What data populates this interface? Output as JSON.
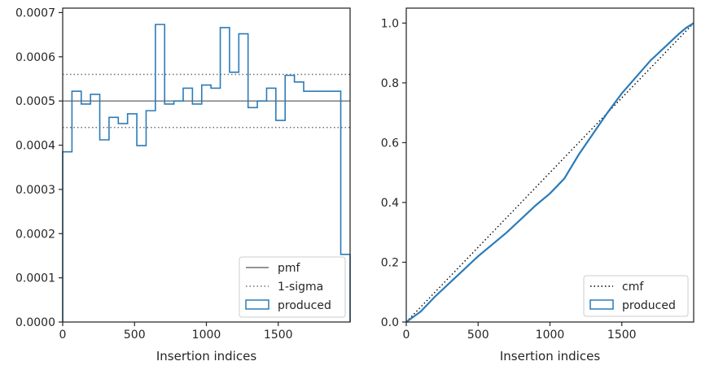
{
  "chart_data": [
    {
      "type": "histogram",
      "xlabel": "Insertion indices",
      "ylabel": "",
      "xlim": [
        0,
        2000
      ],
      "ylim": [
        0,
        0.00071
      ],
      "xticks": [
        "0",
        "500",
        "1000",
        "1500"
      ],
      "yticks": [
        "0.0000",
        "0.0001",
        "0.0002",
        "0.0003",
        "0.0004",
        "0.0005",
        "0.0006",
        "0.0007"
      ],
      "ytick_values": [
        0,
        0.0001,
        0.0002,
        0.0003,
        0.0004,
        0.0005,
        0.0006,
        0.0007
      ],
      "xtick_values": [
        0,
        500,
        1000,
        1500
      ],
      "bin_edges": [
        0,
        64.5,
        129,
        193.5,
        258,
        322.5,
        387,
        451.5,
        516,
        580.5,
        645,
        709.5,
        774,
        838.5,
        903,
        967.5,
        1032,
        1096.5,
        1161,
        1225.5,
        1290,
        1354.5,
        1419,
        1483.5,
        1548,
        1612.5,
        1677,
        1741.5,
        1806,
        1870.5,
        1935,
        2000
      ],
      "values": [
        0.000385,
        0.000522,
        0.000493,
        0.000515,
        0.000412,
        0.000463,
        0.000449,
        0.000471,
        0.000399,
        0.000478,
        0.000673,
        0.000493,
        0.0005,
        0.000529,
        0.000493,
        0.000536,
        0.000529,
        0.000666,
        0.000565,
        0.000652,
        0.000485,
        0.0005,
        0.000529,
        0.000456,
        0.000558,
        0.000543,
        0.000522,
        0.000522,
        0.000522,
        0.000522,
        0.000153
      ],
      "pmf": 0.0005,
      "sigma_band": [
        0.00044,
        0.00056
      ],
      "legend": [
        "pmf",
        "1-sigma",
        "produced"
      ],
      "legend_position": "lower-right",
      "colors": {
        "hist": "#2b7bb9",
        "pmf": "#707070",
        "sigma": "#707070"
      }
    },
    {
      "type": "line",
      "xlabel": "Insertion indices",
      "ylabel": "",
      "xlim": [
        0,
        2000
      ],
      "ylim": [
        0,
        1.05
      ],
      "xticks": [
        "0",
        "500",
        "1000",
        "1500"
      ],
      "xtick_values": [
        0,
        500,
        1000,
        1500
      ],
      "yticks": [
        "0.0",
        "0.2",
        "0.4",
        "0.6",
        "0.8",
        "1.0"
      ],
      "ytick_values": [
        0,
        0.2,
        0.4,
        0.6,
        0.8,
        1.0
      ],
      "cmf": {
        "x": [
          0,
          2000
        ],
        "y": [
          0,
          1.0
        ]
      },
      "produced": {
        "x": [
          0,
          100,
          200,
          300,
          400,
          500,
          600,
          700,
          800,
          900,
          1000,
          1100,
          1200,
          1300,
          1400,
          1500,
          1600,
          1700,
          1800,
          1900,
          1950,
          2000
        ],
        "y": [
          0,
          0.035,
          0.085,
          0.13,
          0.175,
          0.22,
          0.26,
          0.3,
          0.345,
          0.39,
          0.43,
          0.48,
          0.56,
          0.63,
          0.7,
          0.765,
          0.82,
          0.875,
          0.92,
          0.965,
          0.985,
          1.0
        ]
      },
      "legend": [
        "cmf",
        "produced"
      ],
      "legend_position": "lower-right",
      "colors": {
        "produced": "#2b7bb9",
        "cmf": "#000000"
      }
    }
  ]
}
